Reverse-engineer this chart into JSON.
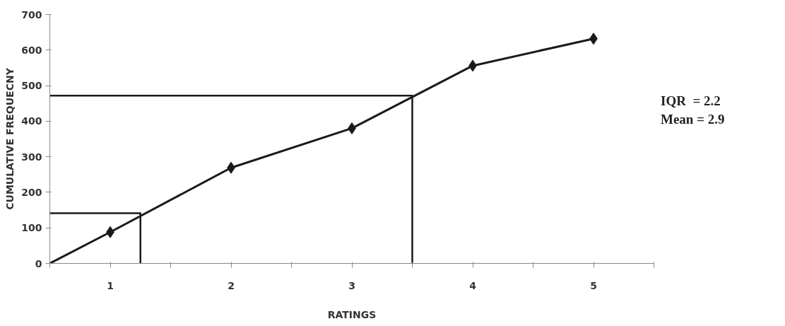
{
  "chart_data": {
    "type": "line",
    "xlabel": "RATINGS",
    "ylabel": "CUMULATIVE FREQUECNY",
    "annotations": [
      "IQR  = 2.2",
      "Mean = 2.9"
    ],
    "xlim": [
      0.5,
      5.5
    ],
    "ylim": [
      0,
      700
    ],
    "xticks": [
      {
        "value": 0.5,
        "label": null
      },
      1,
      {
        "value": 1.5,
        "label": null
      },
      2,
      {
        "value": 2.5,
        "label": null
      },
      3,
      {
        "value": 3.5,
        "label": null
      },
      4,
      {
        "value": 4.5,
        "label": null
      },
      5,
      {
        "value": 5.5,
        "label": null
      }
    ],
    "yticks": [
      0,
      100,
      200,
      300,
      400,
      500,
      600,
      700
    ],
    "grid": false,
    "series": [
      {
        "color": "#1a1a1a",
        "marker": "none",
        "x": [
          0.5,
          1,
          2,
          3,
          4,
          5
        ],
        "values": [
          0,
          88,
          269,
          380,
          556,
          632
        ]
      },
      {
        "type": "scatter",
        "color": "#1a1a1a",
        "marker": "diamond",
        "x": [
          1,
          2,
          3,
          4,
          5
        ],
        "values": [
          88,
          269,
          380,
          556,
          632
        ]
      },
      {
        "color": "#1a1a1a",
        "marker": "none",
        "x": [
          0.5,
          1.25,
          1.25
        ],
        "values": [
          141,
          141,
          0
        ]
      },
      {
        "color": "#1a1a1a",
        "marker": "none",
        "x": [
          0.5,
          3.5,
          3.5
        ],
        "values": [
          472,
          472,
          0
        ]
      }
    ]
  }
}
